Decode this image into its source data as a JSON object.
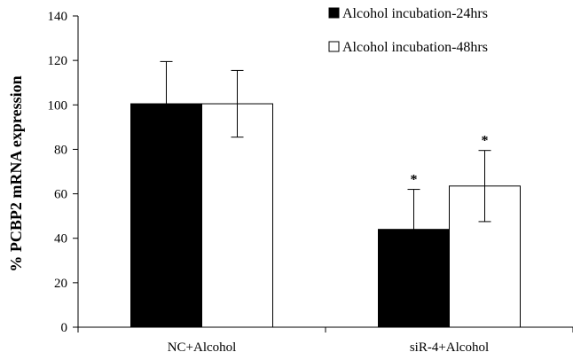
{
  "chart_data": {
    "type": "bar",
    "title": "",
    "xlabel": "",
    "ylabel": "% PCBP2 mRNA expression",
    "ylim": [
      0,
      140
    ],
    "yticks": [
      0,
      20,
      40,
      60,
      80,
      100,
      120,
      140
    ],
    "grid": false,
    "legend_position": "top-right",
    "categories": [
      "NC+Alcohol",
      "siR-4+Alcohol"
    ],
    "series": [
      {
        "name": "Alcohol incubation-24hrs",
        "fill": "#000000",
        "values": [
          100.5,
          44
        ],
        "errors": [
          19,
          18
        ],
        "significance": [
          "",
          "*"
        ]
      },
      {
        "name": "Alcohol incubation-48hrs",
        "fill": "#ffffff",
        "values": [
          100.5,
          63.5
        ],
        "errors": [
          15,
          16
        ],
        "significance": [
          "",
          "*"
        ]
      }
    ]
  }
}
